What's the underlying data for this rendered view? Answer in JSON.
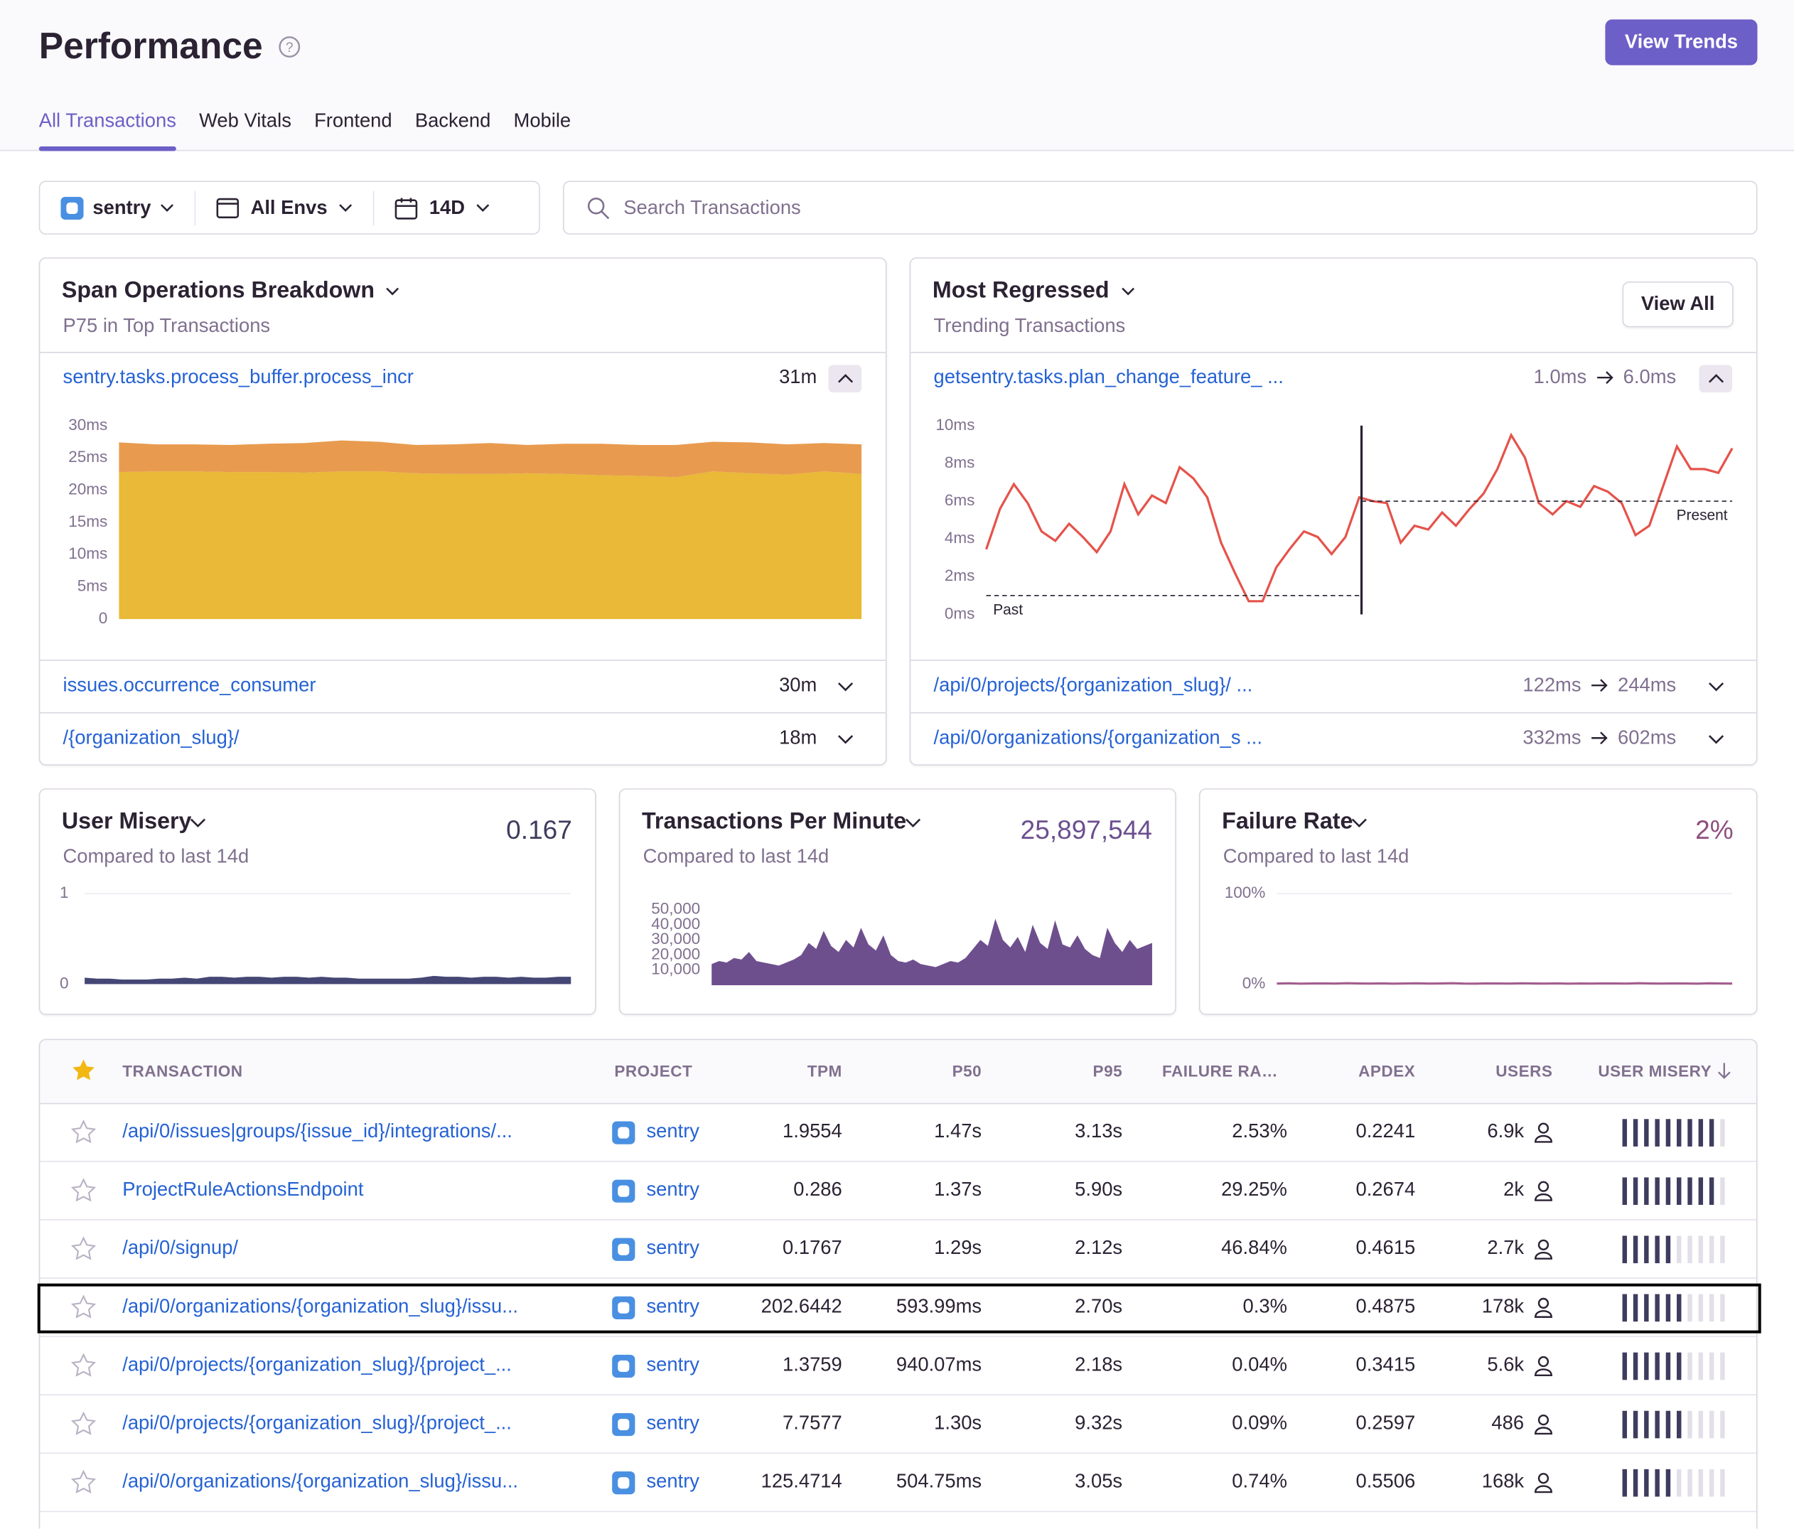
{
  "header": {
    "title": "Performance",
    "button": "View Trends"
  },
  "tabs": {
    "items": [
      "All Transactions",
      "Web Vitals",
      "Frontend",
      "Backend",
      "Mobile"
    ],
    "active": 0
  },
  "filters": {
    "project": "sentry",
    "environment": "All Envs",
    "period": "14D",
    "search_placeholder": "Search Transactions"
  },
  "span_operations": {
    "title": "Span Operations Breakdown",
    "subtitle": "P75 in Top Transactions",
    "rows": [
      {
        "name": "sentry.tasks.process_buffer.process_incr",
        "value": "31m"
      },
      {
        "name": "issues.occurrence_consumer",
        "value": "30m"
      },
      {
        "name": "/{organization_slug}/",
        "value": "18m"
      }
    ],
    "chart": {
      "type": "area",
      "stacked": true,
      "ylim": [
        0,
        30
      ],
      "yticks": [
        0,
        {
          "value": 5,
          "label": "5ms"
        },
        {
          "value": 10,
          "label": "10ms"
        },
        {
          "value": 15,
          "label": "15ms"
        },
        {
          "value": 20,
          "label": "20ms"
        },
        {
          "value": 25,
          "label": "25ms"
        },
        {
          "value": 30,
          "label": "30ms"
        }
      ],
      "series": [
        {
          "color": "#e9b937",
          "values": [
            22.8,
            22.9,
            22.9,
            22.8,
            22.8,
            22.7,
            22.9,
            22.9,
            22.6,
            22.5,
            22.5,
            22.6,
            22.5,
            22.3,
            22.2,
            22.0,
            22.9,
            22.6,
            22.4,
            22.9,
            22.5
          ]
        },
        {
          "color": "#e89b4f",
          "values": [
            4.6,
            4.2,
            4.2,
            4.2,
            4.4,
            4.6,
            4.8,
            4.6,
            4.4,
            4.6,
            4.8,
            4.4,
            4.7,
            4.9,
            4.8,
            5.0,
            4.6,
            4.8,
            4.7,
            4.4,
            4.6
          ]
        }
      ]
    }
  },
  "most_regressed": {
    "title": "Most Regressed",
    "subtitle": "Trending Transactions",
    "button": "View All",
    "rows": [
      {
        "name": "getsentry.tasks.plan_change_feature_ ...",
        "before": "1.0ms",
        "after": "6.0ms"
      },
      {
        "name": "/api/0/projects/{organization_slug}/ ...",
        "before": "122ms",
        "after": "244ms"
      },
      {
        "name": "/api/0/organizations/{organization_s ...",
        "before": "332ms",
        "after": "602ms"
      }
    ],
    "chart": {
      "type": "line",
      "ylim": [
        0,
        10
      ],
      "yticks": [
        {
          "value": 0,
          "label": "0ms"
        },
        {
          "value": 2,
          "label": "2ms"
        },
        {
          "value": 4,
          "label": "4ms"
        },
        {
          "value": 6,
          "label": "6ms"
        },
        {
          "value": 8,
          "label": "8ms"
        },
        {
          "value": 10,
          "label": "10ms"
        }
      ],
      "color": "#e5534b",
      "values": [
        3.45,
        5.6,
        6.9,
        5.9,
        4.4,
        3.9,
        4.8,
        4.1,
        3.3,
        4.4,
        6.9,
        5.3,
        6.3,
        5.9,
        7.8,
        7.2,
        6.2,
        3.8,
        2.2,
        0.7,
        0.7,
        2.5,
        3.5,
        4.4,
        4.1,
        3.2,
        4.1,
        6.2,
        6.0,
        5.9,
        3.8,
        4.7,
        4.5,
        5.4,
        4.7,
        5.6,
        6.4,
        7.7,
        9.5,
        8.3,
        5.9,
        5.3,
        6.0,
        5.7,
        6.8,
        6.5,
        5.9,
        4.2,
        4.7,
        6.8,
        8.9,
        7.7,
        7.7,
        7.5,
        8.8
      ],
      "baselines": [
        {
          "label": "Past",
          "value": 1
        },
        {
          "label": "Present",
          "value": 6
        }
      ]
    }
  },
  "kpis": [
    {
      "title": "User Misery",
      "value": "0.167",
      "value_color": "#3e3c5e",
      "subtitle": "Compared to last 14d",
      "chart": {
        "type": "area",
        "ylim": [
          0,
          1
        ],
        "yticks": [
          0,
          1
        ],
        "color": "#444674",
        "values": [
          0.07,
          0.06,
          0.06,
          0.05,
          0.05,
          0.05,
          0.06,
          0.06,
          0.07,
          0.06,
          0.08,
          0.08,
          0.07,
          0.08,
          0.08,
          0.07,
          0.08,
          0.08,
          0.07,
          0.08,
          0.07,
          0.07,
          0.06,
          0.06,
          0.06,
          0.06,
          0.06,
          0.07,
          0.09,
          0.08,
          0.08,
          0.07,
          0.08,
          0.08,
          0.07,
          0.08,
          0.07,
          0.07,
          0.08,
          0.08
        ]
      }
    },
    {
      "title": "Transactions Per Minute",
      "value": "25,897,544",
      "value_color": "#6c4f8f",
      "subtitle": "Compared to last 14d",
      "chart": {
        "type": "area",
        "ylim": [
          0,
          50000
        ],
        "yticks": [
          {
            "value": 10000,
            "label": "10,000"
          },
          {
            "value": 20000,
            "label": "20,000"
          },
          {
            "value": 30000,
            "label": "30,000"
          },
          {
            "value": 40000,
            "label": "40,000"
          },
          {
            "value": 50000,
            "label": "50,000"
          }
        ],
        "color": "#6e4f8e",
        "values": [
          14000,
          16000,
          15000,
          18000,
          17000,
          22000,
          16000,
          15000,
          14000,
          13000,
          15000,
          17000,
          20000,
          28000,
          24000,
          36000,
          26000,
          22000,
          30000,
          25000,
          38000,
          27000,
          23000,
          33000,
          20000,
          16000,
          15000,
          17000,
          14000,
          13000,
          12000,
          14000,
          16000,
          15000,
          18000,
          24000,
          30000,
          26000,
          44000,
          30000,
          25000,
          32000,
          22000,
          40000,
          28000,
          24000,
          43000,
          27000,
          25000,
          33000,
          24000,
          20000,
          18000,
          38000,
          28000,
          22000,
          30000,
          24000,
          26000,
          28000
        ]
      }
    },
    {
      "title": "Failure Rate",
      "value": "2%",
      "value_color": "#8e4e7e",
      "subtitle": "Compared to last 14d",
      "chart": {
        "type": "line",
        "ylim": [
          0,
          100
        ],
        "yticks": [
          {
            "value": 100,
            "label": "100%"
          },
          {
            "value": 0,
            "label": "0%"
          }
        ],
        "color": "#a45d8e",
        "values": [
          0.5,
          0.8,
          0.4,
          0.6,
          0.7,
          0.5,
          0.9,
          0.6,
          0.5,
          0.7,
          0.4,
          0.6,
          0.8,
          0.5,
          0.6,
          0.9,
          0.5,
          0.4,
          0.7,
          0.6,
          0.5,
          0.8,
          0.6,
          0.5,
          0.7,
          0.4,
          0.6,
          0.5,
          0.7,
          0.6,
          0.5,
          0.9,
          0.6,
          0.5,
          0.7,
          0.6,
          0.4,
          0.8,
          0.6,
          0.5
        ]
      }
    }
  ],
  "table": {
    "columns": [
      "TRANSACTION",
      "PROJECT",
      "TPM",
      "P50",
      "P95",
      "FAILURE RA…",
      "APDEX",
      "USERS",
      "USER MISERY"
    ],
    "sort_column": 8,
    "misery_scale": 10,
    "highlighted_row": 3,
    "rows": [
      {
        "transaction": "/api/0/issues|groups/{issue_id}/integrations/...",
        "project": "sentry",
        "tpm": "1.9554",
        "p50": "1.47s",
        "p95": "3.13s",
        "failure_rate": "2.53%",
        "apdex": "0.2241",
        "users": "6.9k",
        "misery_bars": 9
      },
      {
        "transaction": "ProjectRuleActionsEndpoint",
        "project": "sentry",
        "tpm": "0.286",
        "p50": "1.37s",
        "p95": "5.90s",
        "failure_rate": "29.25%",
        "apdex": "0.2674",
        "users": "2k",
        "misery_bars": 9
      },
      {
        "transaction": "/api/0/signup/",
        "project": "sentry",
        "tpm": "0.1767",
        "p50": "1.29s",
        "p95": "2.12s",
        "failure_rate": "46.84%",
        "apdex": "0.4615",
        "users": "2.7k",
        "misery_bars": 5
      },
      {
        "transaction": "/api/0/organizations/{organization_slug}/issu...",
        "project": "sentry",
        "tpm": "202.6442",
        "p50": "593.99ms",
        "p95": "2.70s",
        "failure_rate": "0.3%",
        "apdex": "0.4875",
        "users": "178k",
        "misery_bars": 6
      },
      {
        "transaction": "/api/0/projects/{organization_slug}/{project_...",
        "project": "sentry",
        "tpm": "1.3759",
        "p50": "940.07ms",
        "p95": "2.18s",
        "failure_rate": "0.04%",
        "apdex": "0.3415",
        "users": "5.6k",
        "misery_bars": 6
      },
      {
        "transaction": "/api/0/projects/{organization_slug}/{project_...",
        "project": "sentry",
        "tpm": "7.7577",
        "p50": "1.30s",
        "p95": "9.32s",
        "failure_rate": "0.09%",
        "apdex": "0.2597",
        "users": "486",
        "misery_bars": 6
      },
      {
        "transaction": "/api/0/organizations/{organization_slug}/issu...",
        "project": "sentry",
        "tpm": "125.4714",
        "p50": "504.75ms",
        "p95": "3.05s",
        "failure_rate": "0.74%",
        "apdex": "0.5506",
        "users": "168k",
        "misery_bars": 5
      }
    ]
  }
}
